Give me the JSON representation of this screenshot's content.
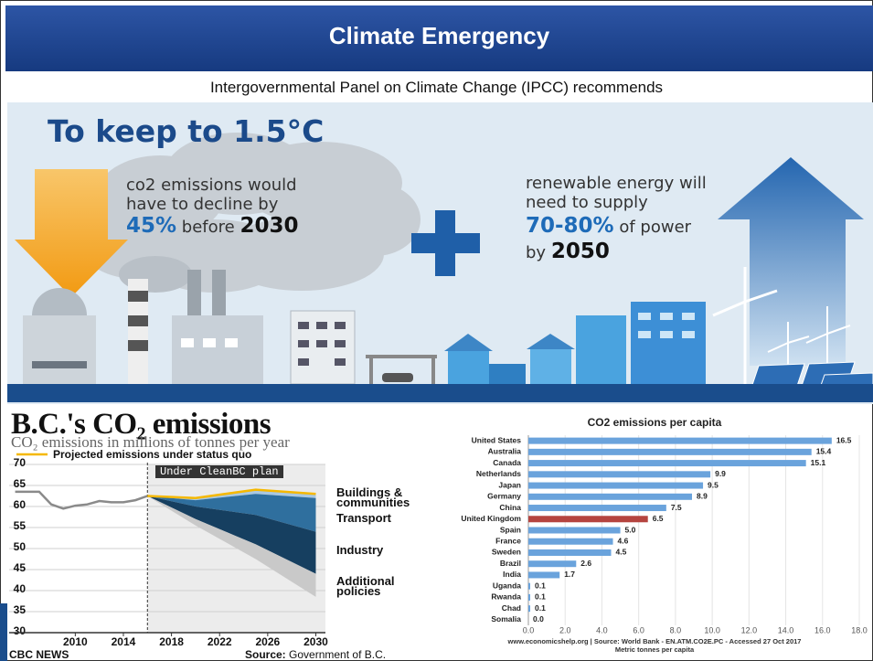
{
  "slide": {
    "title": "Climate Emergency",
    "subtitle": "Intergovernmental Panel on Climate Change (IPCC) recommends"
  },
  "infographic": {
    "heading": "To keep to 1.5°C",
    "left": {
      "text": "co2 emissions would have to decline by",
      "figure": "45%",
      "mid": "before",
      "year": "2030"
    },
    "right": {
      "text": "renewable energy will need to supply",
      "figure": "70-80%",
      "mid": "of power",
      "pre": "by",
      "year": "2050"
    }
  },
  "chart_data": [
    {
      "type": "area",
      "title": "B.C.'s CO₂ emissions",
      "subtitle": "CO₂ emissions in millions of tonnes per year",
      "xlim": [
        2004.5,
        2030.8
      ],
      "xticks": [
        2010,
        2014,
        2018,
        2022,
        2026,
        2030
      ],
      "ylim": [
        30,
        70
      ],
      "yticks": [
        30,
        35,
        40,
        45,
        50,
        55,
        60,
        65,
        70
      ],
      "grid": true,
      "plan_start": 2016,
      "plan_label": "Under CleanBC plan",
      "history": {
        "color": "#8a8a8a",
        "x": [
          2005,
          2007,
          2008,
          2009,
          2010,
          2011,
          2012,
          2013,
          2014,
          2015,
          2016
        ],
        "values": [
          63.5,
          63.5,
          60.5,
          59.5,
          60.2,
          60.5,
          61.3,
          61,
          61,
          61.5,
          62.5
        ]
      },
      "series": [
        {
          "name": "Projected emissions under status quo",
          "color": "#f5b800",
          "x": [
            2016,
            2020,
            2025,
            2030
          ],
          "values": [
            62.5,
            62,
            64,
            63
          ]
        }
      ],
      "wedge_x": [
        2016,
        2020,
        2025,
        2030
      ],
      "wedges": [
        {
          "name": "Buildings & communities",
          "color": "#a9c8e2",
          "values": [
            0,
            0.5,
            1,
            1
          ]
        },
        {
          "name": "Transport",
          "color": "#2f6f9e",
          "values": [
            0,
            1.5,
            5,
            8
          ]
        },
        {
          "name": "Industry",
          "color": "#163f60",
          "values": [
            0,
            3,
            7,
            10
          ]
        },
        {
          "name": "Additional policies",
          "color": "#c9c9c9",
          "values": [
            0,
            1.5,
            3.5,
            5.5
          ]
        }
      ],
      "footer": {
        "brand": "CBC NEWS",
        "source_label": "Source:",
        "source": "Government of B.C."
      }
    },
    {
      "type": "bar",
      "orientation": "horizontal",
      "title": "CO2 emissions per capita",
      "categories": [
        "United States",
        "Australia",
        "Canada",
        "Netherlands",
        "Japan",
        "Germany",
        "China",
        "United Kingdom",
        "Spain",
        "France",
        "Sweden",
        "Brazil",
        "India",
        "Uganda",
        "Rwanda",
        "Chad",
        "Somalia"
      ],
      "values": [
        16.5,
        15.4,
        15.1,
        9.9,
        9.5,
        8.9,
        7.5,
        6.5,
        5,
        4.6,
        4.5,
        2.6,
        1.7,
        0.1,
        0.1,
        0.1,
        0
      ],
      "value_labels": [
        "16.5",
        "15.4",
        "15.1",
        "9.9",
        "9.5",
        "8.9",
        "7.5",
        "6.5",
        "5.0",
        "4.6",
        "4.5",
        "2.6",
        "1.7",
        "0.1",
        "0.1",
        "0.1",
        "0.0"
      ],
      "colors": [
        "#6aa3dc",
        "#6aa3dc",
        "#6aa3dc",
        "#6aa3dc",
        "#6aa3dc",
        "#6aa3dc",
        "#6aa3dc",
        "#b5443f",
        "#6aa3dc",
        "#6aa3dc",
        "#6aa3dc",
        "#6aa3dc",
        "#6aa3dc",
        "#6aa3dc",
        "#6aa3dc",
        "#6aa3dc",
        "#6aa3dc"
      ],
      "xlim": [
        0,
        18
      ],
      "xticks": [
        {
          "value": 0,
          "label": "0.0"
        },
        {
          "value": 2,
          "label": "2.0"
        },
        {
          "value": 4,
          "label": "4.0"
        },
        {
          "value": 6,
          "label": "6.0"
        },
        {
          "value": 8,
          "label": "8.0"
        },
        {
          "value": 10,
          "label": "10.0"
        },
        {
          "value": 12,
          "label": "12.0"
        },
        {
          "value": 14,
          "label": "14.0"
        },
        {
          "value": 16,
          "label": "16.0"
        },
        {
          "value": 18,
          "label": "18.0"
        }
      ],
      "grid": true,
      "source": "www.economicshelp.org | Source: World Bank - EN.ATM.CO2E.PC - Accessed 27 Oct 2017",
      "xlabel": "Metric tonnes per capita"
    }
  ]
}
